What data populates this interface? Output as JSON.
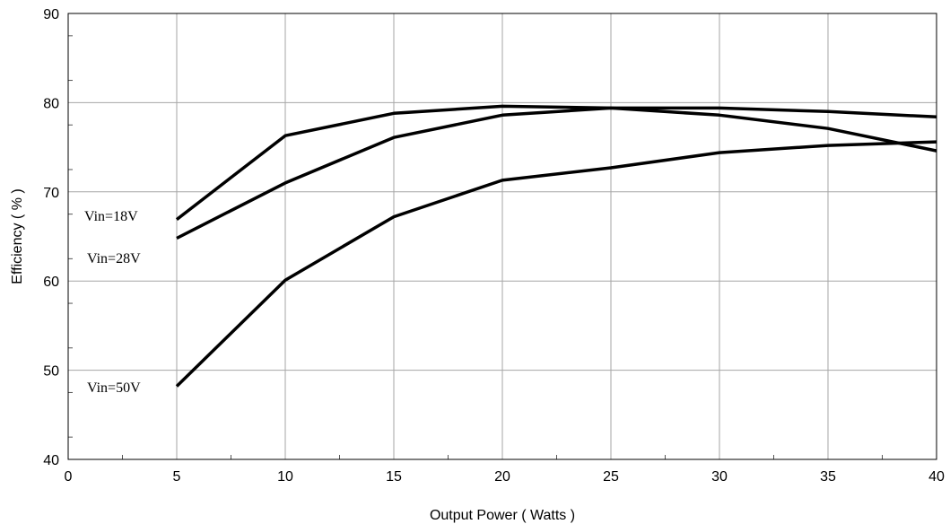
{
  "chart_data": {
    "type": "line",
    "xlabel": "Output Power ( Watts )",
    "ylabel": "Efficiency ( % )",
    "xlim": [
      0,
      40
    ],
    "ylim": [
      40,
      90
    ],
    "x_ticks": [
      0,
      5,
      10,
      15,
      20,
      25,
      30,
      35,
      40
    ],
    "y_ticks": [
      40,
      50,
      60,
      70,
      80,
      90
    ],
    "x_tick_labels": [
      "0",
      "5",
      "10",
      "15",
      "20",
      "25",
      "30",
      "35",
      "40"
    ],
    "y_tick_labels": [
      "40",
      "50",
      "60",
      "70",
      "80",
      "90"
    ],
    "grid": true,
    "legend": "none",
    "x": [
      5,
      10,
      15,
      20,
      25,
      30,
      35,
      40
    ],
    "series": [
      {
        "name": "Vin=18V",
        "values": [
          66.9,
          76.3,
          78.8,
          79.6,
          79.4,
          79.4,
          79.0,
          78.4
        ]
      },
      {
        "name": "Vin=28V",
        "values": [
          64.8,
          71.0,
          76.1,
          78.6,
          79.4,
          78.6,
          77.1,
          74.6
        ]
      },
      {
        "name": "Vin=50V",
        "values": [
          48.2,
          60.1,
          67.2,
          71.3,
          72.7,
          74.4,
          75.2,
          75.6
        ]
      }
    ],
    "line_color": "#000000"
  }
}
